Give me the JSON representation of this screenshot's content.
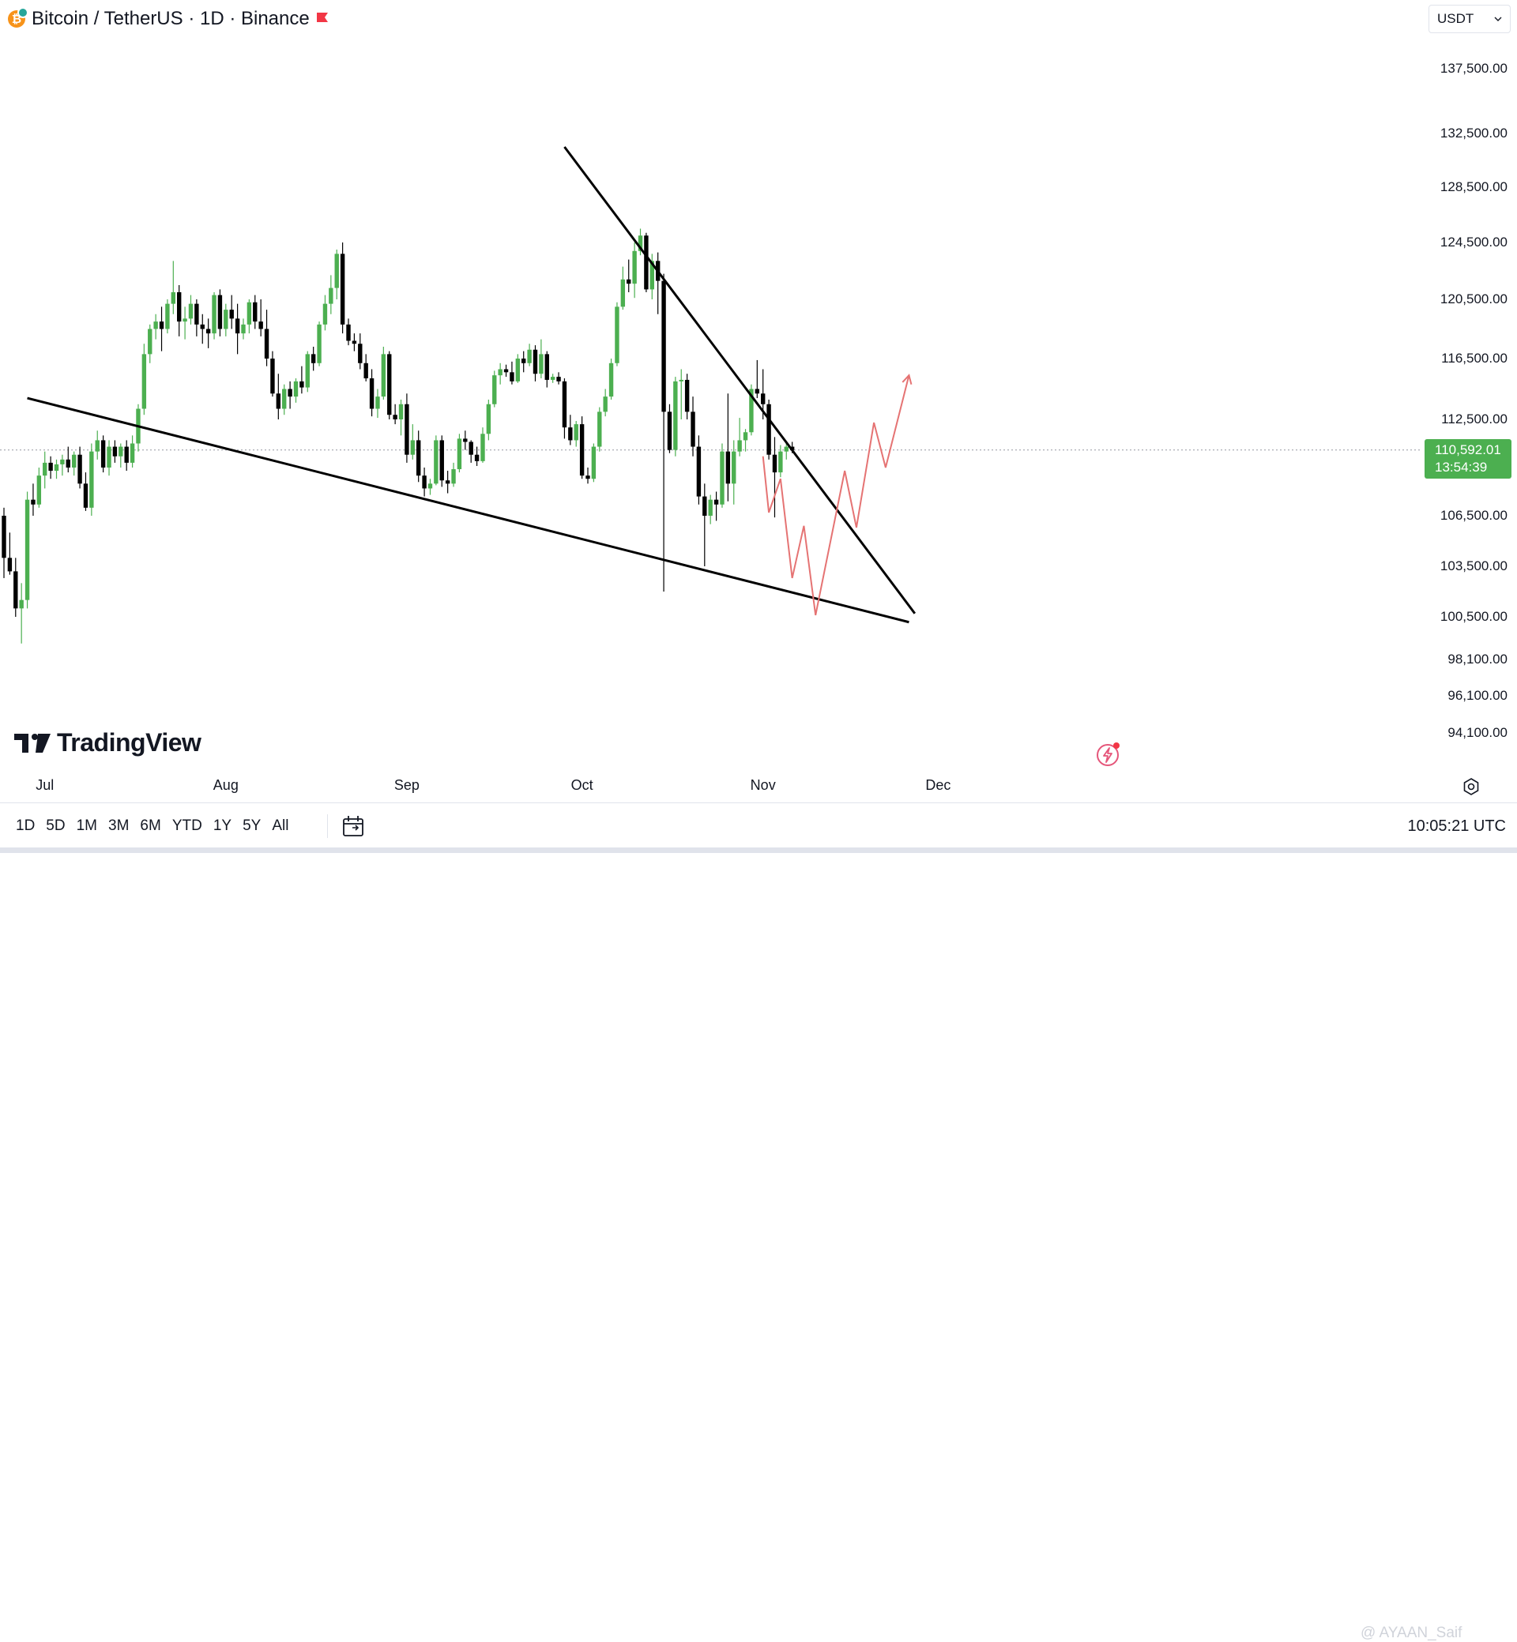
{
  "header": {
    "title": "Bitcoin / TetherUS · 1D · Binance",
    "logo_icon": "bitcoin-logo-icon",
    "flag_icon": "flag-icon",
    "flag_color": "#f23645"
  },
  "currency": {
    "label": "USDT",
    "icon": "chevron-down-icon"
  },
  "price_axis": {
    "labels": [
      "137,500.00",
      "132,500.00",
      "128,500.00",
      "124,500.00",
      "120,500.00",
      "116,500.00",
      "112,500.00",
      "106,500.00",
      "103,500.00",
      "100,500.00",
      "98,100.00",
      "96,100.00",
      "94,100.00"
    ],
    "last_price": "110,592.01",
    "countdown": "13:54:39"
  },
  "time_axis": {
    "labels": [
      "Jul",
      "Aug",
      "Sep",
      "Oct",
      "Nov",
      "Dec"
    ]
  },
  "branding": {
    "name": "TradingView"
  },
  "range_buttons": [
    "1D",
    "5D",
    "1M",
    "3M",
    "6M",
    "YTD",
    "1Y",
    "5Y",
    "All"
  ],
  "clock": "10:05:21 UTC",
  "watermark": "@ AYAAN_Saif",
  "colors": {
    "up": "#4caf50",
    "down": "#000000",
    "trendline": "#000000",
    "projection": "#e57373",
    "price_tag": "#4caf50"
  },
  "chart_data": {
    "type": "candlestick",
    "symbol": "Bitcoin / TetherUS",
    "interval": "1D",
    "exchange": "Binance",
    "x_start": "2025-06-24",
    "ylim": [
      94100,
      137500
    ],
    "candles": [
      [
        106500,
        107000,
        102800,
        104000
      ],
      [
        104000,
        105500,
        103000,
        103200
      ],
      [
        103200,
        104000,
        100500,
        101000
      ],
      [
        101000,
        102500,
        99000,
        101500
      ],
      [
        101500,
        108000,
        101000,
        107500
      ],
      [
        107500,
        108500,
        106500,
        107200
      ],
      [
        107200,
        109500,
        107000,
        109000
      ],
      [
        109000,
        110500,
        108200,
        109800
      ],
      [
        109800,
        110200,
        108800,
        109300
      ],
      [
        109300,
        110000,
        108800,
        109700
      ],
      [
        109700,
        110300,
        109000,
        110000
      ],
      [
        110000,
        110800,
        109200,
        109500
      ],
      [
        109500,
        110500,
        109000,
        110300
      ],
      [
        110300,
        110800,
        108200,
        108500
      ],
      [
        108500,
        109200,
        106800,
        107000
      ],
      [
        107000,
        111000,
        106500,
        110500
      ],
      [
        110500,
        111800,
        110000,
        111200
      ],
      [
        111200,
        111500,
        109200,
        109500
      ],
      [
        109500,
        111200,
        109000,
        110800
      ],
      [
        110800,
        111200,
        109800,
        110200
      ],
      [
        110200,
        111000,
        109500,
        110800
      ],
      [
        110800,
        111200,
        109300,
        109800
      ],
      [
        109800,
        111500,
        109500,
        111000
      ],
      [
        111000,
        113500,
        110500,
        113200
      ],
      [
        113200,
        117500,
        112800,
        116800
      ],
      [
        116800,
        118800,
        116200,
        118500
      ],
      [
        118500,
        119500,
        117800,
        119000
      ],
      [
        119000,
        120000,
        117000,
        118500
      ],
      [
        118500,
        120500,
        118200,
        120200
      ],
      [
        120200,
        123200,
        119500,
        121000
      ],
      [
        121000,
        121500,
        118000,
        119000
      ],
      [
        119000,
        120000,
        117800,
        119200
      ],
      [
        119200,
        120800,
        118800,
        120200
      ],
      [
        120200,
        120500,
        118000,
        118800
      ],
      [
        118800,
        119500,
        117500,
        118500
      ],
      [
        118500,
        119200,
        117200,
        118200
      ],
      [
        118200,
        121000,
        117800,
        120800
      ],
      [
        120800,
        121200,
        118000,
        118500
      ],
      [
        118500,
        120200,
        118000,
        119800
      ],
      [
        119800,
        120800,
        118500,
        119200
      ],
      [
        119200,
        120200,
        116800,
        118200
      ],
      [
        118200,
        119200,
        117800,
        118800
      ],
      [
        118800,
        120500,
        118200,
        120300
      ],
      [
        120300,
        120800,
        118500,
        119000
      ],
      [
        119000,
        120500,
        118000,
        118500
      ],
      [
        118500,
        119800,
        116000,
        116500
      ],
      [
        116500,
        117000,
        114000,
        114200
      ],
      [
        114200,
        115500,
        112500,
        113200
      ],
      [
        113200,
        114800,
        112800,
        114500
      ],
      [
        114500,
        115000,
        113200,
        114000
      ],
      [
        114000,
        115200,
        113600,
        115000
      ],
      [
        115000,
        116000,
        114200,
        114600
      ],
      [
        114600,
        117000,
        114300,
        116800
      ],
      [
        116800,
        117300,
        115700,
        116200
      ],
      [
        116200,
        119000,
        116000,
        118800
      ],
      [
        118800,
        120800,
        118400,
        120200
      ],
      [
        120200,
        122200,
        119500,
        121300
      ],
      [
        121300,
        124000,
        120500,
        123700
      ],
      [
        123700,
        124500,
        118200,
        118800
      ],
      [
        118800,
        119200,
        117400,
        117700
      ],
      [
        117700,
        118200,
        117000,
        117500
      ],
      [
        117500,
        118200,
        115800,
        116200
      ],
      [
        116200,
        116800,
        115000,
        115200
      ],
      [
        115200,
        115800,
        112700,
        113200
      ],
      [
        113200,
        114500,
        112600,
        114000
      ],
      [
        114000,
        117300,
        113800,
        116800
      ],
      [
        116800,
        117000,
        112500,
        112800
      ],
      [
        112800,
        113500,
        112200,
        112500
      ],
      [
        112500,
        113800,
        111500,
        113500
      ],
      [
        113500,
        114200,
        109800,
        110300
      ],
      [
        110300,
        112200,
        110000,
        111200
      ],
      [
        111200,
        111800,
        108600,
        109000
      ],
      [
        109000,
        109500,
        107700,
        108200
      ],
      [
        108200,
        108800,
        107800,
        108500
      ],
      [
        108500,
        111500,
        108400,
        111200
      ],
      [
        111200,
        111500,
        108300,
        108700
      ],
      [
        108700,
        109300,
        107900,
        108500
      ],
      [
        108500,
        109800,
        108300,
        109400
      ],
      [
        109400,
        111600,
        109200,
        111300
      ],
      [
        111300,
        111800,
        110600,
        111100
      ],
      [
        111100,
        111200,
        109800,
        110300
      ],
      [
        110300,
        110800,
        109600,
        109900
      ],
      [
        109900,
        112000,
        109800,
        111600
      ],
      [
        111600,
        113800,
        111200,
        113500
      ],
      [
        113500,
        115700,
        113300,
        115400
      ],
      [
        115400,
        116200,
        114800,
        115800
      ],
      [
        115800,
        116100,
        115300,
        115600
      ],
      [
        115600,
        116300,
        114800,
        115000
      ],
      [
        115000,
        116800,
        114900,
        116500
      ],
      [
        116500,
        117000,
        115600,
        116200
      ],
      [
        116200,
        117500,
        116000,
        117100
      ],
      [
        117100,
        117400,
        115000,
        115500
      ],
      [
        115500,
        117800,
        115200,
        116800
      ],
      [
        116800,
        117000,
        114600,
        115100
      ],
      [
        115100,
        115500,
        114900,
        115300
      ],
      [
        115300,
        115600,
        114800,
        115000
      ],
      [
        115000,
        115200,
        111300,
        112000
      ],
      [
        112000,
        112800,
        110900,
        111200
      ],
      [
        111200,
        112400,
        110800,
        112200
      ],
      [
        112200,
        112700,
        108800,
        109000
      ],
      [
        109000,
        109500,
        108500,
        108800
      ],
      [
        108800,
        111000,
        108600,
        110800
      ],
      [
        110800,
        113300,
        110500,
        113000
      ],
      [
        113000,
        114500,
        112700,
        114000
      ],
      [
        114000,
        116500,
        113800,
        116200
      ],
      [
        116200,
        120300,
        116000,
        120000
      ],
      [
        120000,
        122800,
        119800,
        121900
      ],
      [
        121900,
        123300,
        121000,
        121600
      ],
      [
        121600,
        124500,
        120600,
        123900
      ],
      [
        123900,
        125500,
        123600,
        125000
      ],
      [
        125000,
        125200,
        121000,
        121200
      ],
      [
        121200,
        123700,
        120500,
        123200
      ],
      [
        123200,
        123800,
        119500,
        121800
      ],
      [
        121800,
        122300,
        102000,
        113000
      ],
      [
        113000,
        113500,
        110400,
        110600
      ],
      [
        110600,
        115300,
        110200,
        115000
      ],
      [
        115000,
        115800,
        112500,
        115100
      ],
      [
        115100,
        115500,
        112500,
        113000
      ],
      [
        113000,
        114000,
        110200,
        110800
      ],
      [
        110800,
        111500,
        107200,
        107700
      ],
      [
        107700,
        108500,
        103500,
        106500
      ],
      [
        106500,
        107800,
        106000,
        107500
      ],
      [
        107500,
        108000,
        106200,
        107200
      ],
      [
        107200,
        111000,
        107000,
        110500
      ],
      [
        110500,
        114200,
        107400,
        108500
      ],
      [
        108500,
        111200,
        107200,
        110500
      ],
      [
        110500,
        112600,
        110200,
        111200
      ],
      [
        111200,
        111900,
        110500,
        111700
      ],
      [
        111700,
        114800,
        111500,
        114500
      ],
      [
        114500,
        116400,
        113900,
        114200
      ],
      [
        114200,
        115800,
        112500,
        113500
      ],
      [
        113500,
        113800,
        110000,
        110300
      ],
      [
        110300,
        111400,
        106400,
        109200
      ],
      [
        109200,
        110900,
        108900,
        110500
      ],
      [
        110500,
        111100,
        110000,
        110800
      ],
      [
        110800,
        111100,
        110400,
        110592.01
      ]
    ],
    "support_line": {
      "start": [
        "2025-06-28",
        113900
      ],
      "end": [
        "2025-11-26",
        100200
      ]
    },
    "resistance_line": {
      "start": [
        "2025-09-28",
        131500
      ],
      "end": [
        "2025-11-27",
        100700
      ]
    },
    "projection_path": [
      [
        "2025-11-01",
        110200
      ],
      [
        "2025-11-02",
        106700
      ],
      [
        "2025-11-04",
        108800
      ],
      [
        "2025-11-06",
        102800
      ],
      [
        "2025-11-08",
        105900
      ],
      [
        "2025-11-10",
        100600
      ],
      [
        "2025-11-15",
        109300
      ],
      [
        "2025-11-17",
        105800
      ],
      [
        "2025-11-20",
        112300
      ],
      [
        "2025-11-22",
        109500
      ],
      [
        "2025-11-26",
        115400
      ]
    ],
    "last_price": 110592.01,
    "time_ticks": [
      "Jul",
      "Aug",
      "Sep",
      "Oct",
      "Nov",
      "Dec"
    ]
  }
}
